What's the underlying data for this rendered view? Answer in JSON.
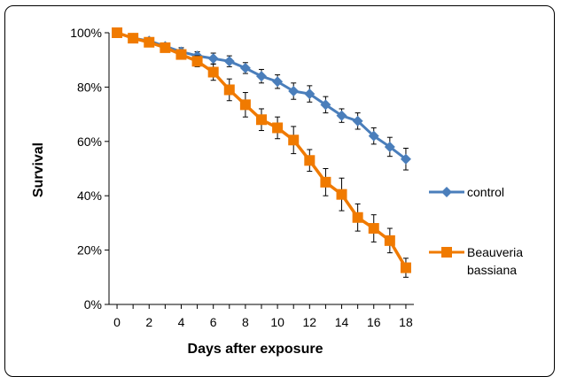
{
  "chart_data": {
    "type": "line",
    "title": "",
    "xlabel": "Days after exposure",
    "ylabel": "Survival",
    "x_ticks": [
      "0",
      "2",
      "4",
      "6",
      "8",
      "10",
      "12",
      "14",
      "16",
      "18"
    ],
    "y_ticks": [
      "0%",
      "20%",
      "40%",
      "60%",
      "80%",
      "100%"
    ],
    "xlim": [
      -0.5,
      18.5
    ],
    "ylim": [
      0,
      1
    ],
    "grid": false,
    "legend_position": "right",
    "x": [
      0,
      1,
      2,
      3,
      4,
      5,
      6,
      7,
      8,
      9,
      10,
      11,
      12,
      13,
      14,
      15,
      16,
      17,
      18
    ],
    "series": [
      {
        "name": "control",
        "color": "#4a7ebb",
        "marker": "diamond",
        "values": [
          1.0,
          0.98,
          0.97,
          0.95,
          0.93,
          0.915,
          0.905,
          0.895,
          0.87,
          0.84,
          0.82,
          0.785,
          0.775,
          0.735,
          0.695,
          0.675,
          0.62,
          0.58,
          0.535
        ],
        "errors": [
          0.0,
          0.008,
          0.01,
          0.01,
          0.015,
          0.015,
          0.02,
          0.02,
          0.02,
          0.025,
          0.025,
          0.03,
          0.03,
          0.03,
          0.025,
          0.03,
          0.03,
          0.035,
          0.04
        ]
      },
      {
        "name": "Beauveria\nbassiana",
        "label_lines": [
          "Beauveria",
          "bassiana"
        ],
        "color": "#f07a00",
        "marker": "square",
        "values": [
          1.0,
          0.98,
          0.965,
          0.945,
          0.92,
          0.895,
          0.855,
          0.79,
          0.735,
          0.68,
          0.65,
          0.605,
          0.53,
          0.45,
          0.405,
          0.32,
          0.28,
          0.235,
          0.135
        ],
        "errors": [
          0.0,
          0.01,
          0.01,
          0.015,
          0.015,
          0.02,
          0.03,
          0.04,
          0.045,
          0.04,
          0.04,
          0.05,
          0.04,
          0.05,
          0.06,
          0.05,
          0.05,
          0.045,
          0.035
        ]
      }
    ]
  }
}
